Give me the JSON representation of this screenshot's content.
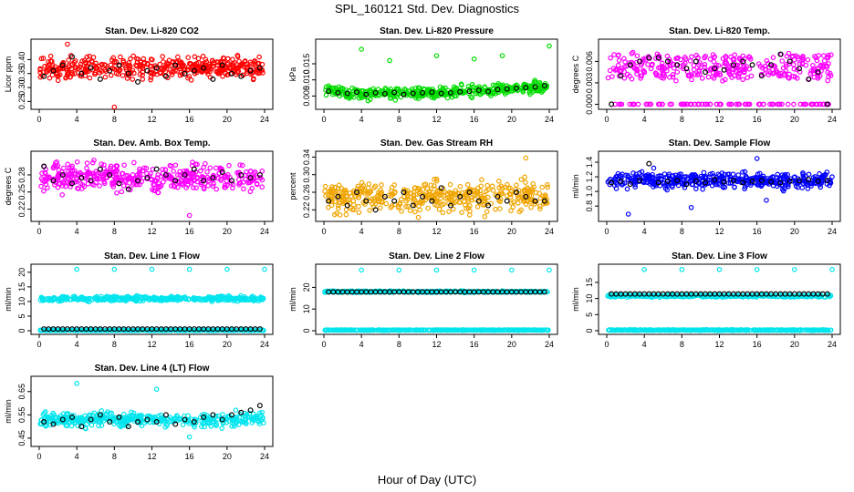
{
  "figure": {
    "title": "SPL_160121  Std. Dev. Diagnostics",
    "xlabel": "Hour of Day (UTC)"
  },
  "chart_data": [
    {
      "type": "scatter",
      "title": "Stan. Dev. Li-820 CO2",
      "ylabel": "Licor ppm",
      "xlim": [
        0,
        24
      ],
      "ylim": [
        0.235,
        0.46
      ],
      "xticks": [
        "0",
        "4",
        "8",
        "12",
        "16",
        "20",
        "24"
      ],
      "yticks": [
        0.25,
        0.3,
        0.35,
        0.4
      ],
      "ytick_labels": [
        "0.25",
        "0.30",
        "0.35",
        "0.40"
      ],
      "series": [
        {
          "color": "#ff0000",
          "kind": "dense_scatter",
          "base": 0.37,
          "spread": 0.03,
          "outliers": [
            [
              3.0,
              0.455
            ],
            [
              8.0,
              0.23
            ]
          ]
        },
        {
          "color": "#000000",
          "kind": "hourly",
          "values": [
            0.34,
            0.36,
            0.38,
            0.41,
            0.35,
            0.37,
            0.33,
            0.36,
            0.38,
            0.35,
            0.32,
            0.36,
            0.37,
            0.34,
            0.38,
            0.35,
            0.36,
            0.37,
            0.33,
            0.38,
            0.35,
            0.34,
            0.36,
            0.37
          ]
        }
      ]
    },
    {
      "type": "scatter",
      "title": "Stan. Dev. Li-820 Pressure",
      "ylabel": "kPa",
      "xlim": [
        0,
        24
      ],
      "ylim": [
        0.002,
        0.0215
      ],
      "xticks": [
        "0",
        "4",
        "8",
        "12",
        "16",
        "20",
        "24"
      ],
      "yticks": [
        0.005,
        0.01,
        0.015
      ],
      "ytick_labels": [
        "0.005",
        "0.010",
        "0.015"
      ],
      "series": [
        {
          "color": "#00dd00",
          "kind": "dense_scatter_trend",
          "trend": [
            0.007,
            0.0058,
            0.0056,
            0.006,
            0.0062,
            0.0068,
            0.0075,
            0.008
          ],
          "spread": 0.0015,
          "outliers": [
            [
              4.0,
              0.0195
            ],
            [
              7.0,
              0.016
            ],
            [
              12.0,
              0.0175
            ],
            [
              16.0,
              0.0165
            ],
            [
              19.0,
              0.0175
            ],
            [
              24.0,
              0.0205
            ]
          ]
        },
        {
          "color": "#000000",
          "kind": "hourly",
          "values": [
            0.0065,
            0.006,
            0.0058,
            0.0062,
            0.0055,
            0.006,
            0.0057,
            0.0061,
            0.0055,
            0.0058,
            0.006,
            0.0062,
            0.0058,
            0.006,
            0.0063,
            0.0065,
            0.0068,
            0.0064,
            0.007,
            0.0072,
            0.0074,
            0.0076,
            0.0078,
            0.0082
          ]
        }
      ]
    },
    {
      "type": "scatter",
      "title": "Stan. Dev. Li-820 Temp.",
      "ylabel": "degrees C",
      "xlim": [
        0,
        24
      ],
      "ylim": [
        -0.0002,
        0.0086
      ],
      "xticks": [
        "0",
        "4",
        "8",
        "12",
        "16",
        "20",
        "24"
      ],
      "yticks": [
        0.0,
        0.003,
        0.006
      ],
      "ytick_labels": [
        "0.000",
        "0.003",
        "0.006"
      ],
      "series": [
        {
          "color": "#ff00ff",
          "kind": "levels",
          "levels": [
            0.0,
            0.004,
            0.0052,
            0.0065
          ],
          "spread": 0.0006
        },
        {
          "color": "#000000",
          "kind": "hourly",
          "values": [
            0.0,
            0.004,
            0.0055,
            0.006,
            0.0065,
            0.0065,
            0.006,
            0.0055,
            0.005,
            0.006,
            0.0045,
            0.005,
            0.0048,
            0.0055,
            0.006,
            0.0055,
            0.004,
            0.0055,
            0.007,
            0.006,
            0.005,
            0.0035,
            0.0045,
            0.0
          ]
        }
      ]
    },
    {
      "type": "scatter",
      "title": "Stan. Dev. Amb. Box Temp.",
      "ylabel": "degrees C",
      "xlim": [
        0,
        24
      ],
      "ylim": [
        0.205,
        0.315
      ],
      "xticks": [
        "0",
        "4",
        "8",
        "12",
        "16",
        "20",
        "24"
      ],
      "yticks": [
        0.22,
        0.25,
        0.28
      ],
      "ytick_labels": [
        "0.22",
        "0.25",
        "0.28"
      ],
      "series": [
        {
          "color": "#ff00ff",
          "kind": "dense_scatter",
          "base": 0.275,
          "spread": 0.02,
          "outliers": [
            [
              16.0,
              0.209
            ]
          ]
        },
        {
          "color": "#000000",
          "kind": "hourly",
          "values": [
            0.295,
            0.27,
            0.28,
            0.265,
            0.275,
            0.27,
            0.29,
            0.28,
            0.265,
            0.255,
            0.27,
            0.275,
            0.29,
            0.28,
            0.27,
            0.28,
            0.29,
            0.27,
            0.275,
            0.285,
            0.27,
            0.28,
            0.275,
            0.28
          ]
        }
      ]
    },
    {
      "type": "scatter",
      "title": "Stan. Dev. Gas Stream RH",
      "ylabel": "percent",
      "xlim": [
        0,
        24
      ],
      "ylim": [
        0.202,
        0.345
      ],
      "xticks": [
        "0",
        "4",
        "8",
        "12",
        "16",
        "20",
        "24"
      ],
      "yticks": [
        0.22,
        0.26,
        0.3,
        0.34
      ],
      "ytick_labels": [
        "0.22",
        "0.26",
        "0.30",
        "0.34"
      ],
      "series": [
        {
          "color": "#f0a500",
          "kind": "dense_scatter",
          "base": 0.25,
          "spread": 0.03,
          "outliers": [
            [
              21.5,
              0.338
            ]
          ]
        },
        {
          "color": "#000000",
          "kind": "hourly",
          "values": [
            0.24,
            0.25,
            0.23,
            0.26,
            0.24,
            0.22,
            0.25,
            0.24,
            0.26,
            0.23,
            0.25,
            0.24,
            0.27,
            0.23,
            0.25,
            0.26,
            0.24,
            0.23,
            0.25,
            0.24,
            0.26,
            0.25,
            0.24,
            0.24
          ]
        }
      ]
    },
    {
      "type": "scatter",
      "title": "Stan. Dev. Sample Flow",
      "ylabel": "ml/min",
      "xlim": [
        0,
        24
      ],
      "ylim": [
        0.64,
        1.5
      ],
      "xticks": [
        "0",
        "4",
        "8",
        "12",
        "16",
        "20",
        "24"
      ],
      "yticks": [
        0.8,
        1.0,
        1.2,
        1.4
      ],
      "ytick_labels": [
        "0.8",
        "1.0",
        "1.2",
        "1.4"
      ],
      "series": [
        {
          "color": "#0000ff",
          "kind": "dense_scatter",
          "base": 1.15,
          "spread": 0.09,
          "outliers": [
            [
              2.3,
              0.69
            ],
            [
              5.0,
              1.32
            ],
            [
              9.0,
              0.78
            ],
            [
              16.0,
              1.45
            ],
            [
              17.0,
              0.88
            ],
            [
              24.0,
              1.2
            ]
          ]
        },
        {
          "color": "#000000",
          "kind": "hourly",
          "values": [
            1.12,
            1.14,
            1.1,
            1.15,
            1.38,
            1.12,
            1.14,
            1.15,
            1.1,
            1.14,
            1.12,
            1.16,
            1.13,
            1.15,
            1.12,
            1.14,
            1.15,
            1.13,
            1.12,
            1.14,
            1.15,
            1.16,
            1.14,
            1.15
          ]
        }
      ]
    },
    {
      "type": "scatter",
      "title": "Stan. Dev. Line 1 Flow",
      "ylabel": "ml/min",
      "xlim": [
        0,
        24
      ],
      "ylim": [
        0,
        21.5
      ],
      "xticks": [
        "0",
        "4",
        "8",
        "12",
        "16",
        "20",
        "24"
      ],
      "yticks": [
        0,
        5,
        10,
        15,
        20
      ],
      "ytick_labels": [
        "0",
        "5",
        "10",
        "15",
        "20"
      ],
      "series": [
        {
          "color": "#00e5ee",
          "kind": "band",
          "level": 11.0,
          "spread": 0.7,
          "outliers": [
            [
              4,
              21.0
            ],
            [
              8,
              21.0
            ],
            [
              12,
              21.0
            ],
            [
              16,
              21.0
            ],
            [
              20,
              21.0
            ],
            [
              24,
              21.0
            ]
          ]
        },
        {
          "color": "#00e5ee",
          "kind": "band",
          "level": 0.15,
          "spread": 0.1
        },
        {
          "color": "#000000",
          "kind": "line_markers",
          "level": 0.6
        }
      ]
    },
    {
      "type": "scatter",
      "title": "Stan. Dev. Line 2 Flow",
      "ylabel": "ml/min",
      "xlim": [
        0,
        24
      ],
      "ylim": [
        0,
        29
      ],
      "xticks": [
        "0",
        "4",
        "8",
        "12",
        "16",
        "20",
        "24"
      ],
      "yticks": [
        0,
        10,
        20
      ],
      "ytick_labels": [
        "0",
        "10",
        "20"
      ],
      "series": [
        {
          "color": "#00e5ee",
          "kind": "band",
          "level": 18.0,
          "spread": 0.3,
          "outliers": [
            [
              4,
              28.0
            ],
            [
              8,
              28.0
            ],
            [
              12,
              28.0
            ],
            [
              16,
              28.0
            ],
            [
              20,
              28.0
            ],
            [
              24,
              28.0
            ]
          ]
        },
        {
          "color": "#00e5ee",
          "kind": "band",
          "level": 0.3,
          "spread": 0.1
        },
        {
          "color": "#000000",
          "kind": "line_markers",
          "level": 17.9
        }
      ]
    },
    {
      "type": "scatter",
      "title": "Stan. Dev. Line 3 Flow",
      "ylabel": "ml/min",
      "xlim": [
        0,
        24
      ],
      "ylim": [
        0,
        19.5
      ],
      "xticks": [
        "0",
        "4",
        "8",
        "12",
        "16",
        "20",
        "24"
      ],
      "yticks": [
        0,
        5,
        10,
        15
      ],
      "ytick_labels": [
        "0",
        "5",
        "10",
        "15"
      ],
      "series": [
        {
          "color": "#00e5ee",
          "kind": "band",
          "level": 10.8,
          "spread": 0.3,
          "outliers": [
            [
              4,
              19.0
            ],
            [
              8,
              19.0
            ],
            [
              12,
              19.0
            ],
            [
              16,
              19.0
            ],
            [
              20,
              19.0
            ],
            [
              24,
              19.0
            ]
          ]
        },
        {
          "color": "#00e5ee",
          "kind": "band",
          "level": 0.2,
          "spread": 0.1
        },
        {
          "color": "#000000",
          "kind": "line_markers",
          "level": 11.4
        }
      ]
    },
    {
      "type": "scatter",
      "title": "Stan. Dev. Line 4 (LT) Flow",
      "ylabel": "ml/min",
      "xlim": [
        0,
        24
      ],
      "ylim": [
        0.43,
        0.7
      ],
      "xticks": [
        "0",
        "4",
        "8",
        "12",
        "16",
        "20",
        "24"
      ],
      "yticks": [
        0.45,
        0.55,
        0.65
      ],
      "ytick_labels": [
        "0.45",
        "0.55",
        "0.65"
      ],
      "series": [
        {
          "color": "#00e5ee",
          "kind": "dense_scatter",
          "base": 0.53,
          "spread": 0.025,
          "outliers": [
            [
              4.0,
              0.685
            ],
            [
              12.5,
              0.66
            ],
            [
              16.0,
              0.455
            ]
          ]
        },
        {
          "color": "#000000",
          "kind": "hourly",
          "values": [
            0.52,
            0.51,
            0.53,
            0.54,
            0.5,
            0.53,
            0.55,
            0.52,
            0.54,
            0.5,
            0.52,
            0.53,
            0.52,
            0.55,
            0.51,
            0.53,
            0.52,
            0.54,
            0.55,
            0.53,
            0.55,
            0.56,
            0.57,
            0.59
          ]
        }
      ]
    }
  ]
}
